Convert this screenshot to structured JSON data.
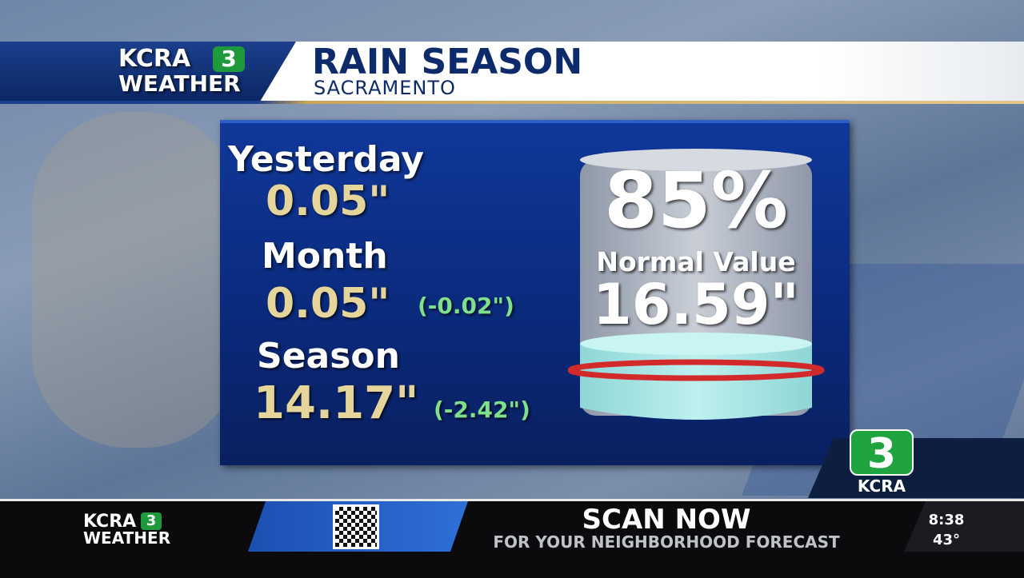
{
  "header": {
    "logo": {
      "brand": "KCRA",
      "channel": "3",
      "label": "WEATHER"
    },
    "title": "RAIN SEASON",
    "subtitle": "SACRAMENTO"
  },
  "stats": [
    {
      "label": "Yesterday",
      "value": "0.05\""
    },
    {
      "label": "Month",
      "value": "0.05\"",
      "departure": "(-0.02\")"
    },
    {
      "label": "Season",
      "value": "14.17\"",
      "departure": "(-2.42\")"
    }
  ],
  "gauge": {
    "percent": "85%",
    "label": "Normal Value",
    "normal": "16.59\""
  },
  "bug": {
    "channel": "3",
    "brand": "KCRA"
  },
  "ticker": {
    "logo": {
      "brand": "KCRA",
      "channel": "3",
      "label": "WEATHER"
    },
    "headline": "SCAN NOW",
    "subline": "FOR YOUR NEIGHBORHOOD FORECAST",
    "time": "8:38",
    "temperature": "43°"
  }
}
